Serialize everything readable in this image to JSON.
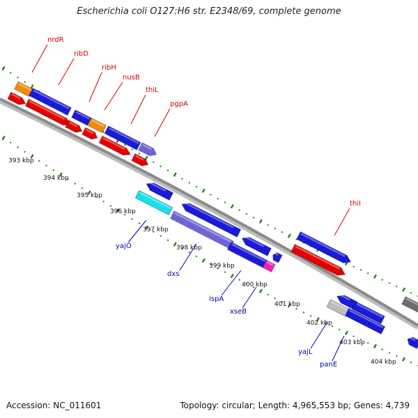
{
  "title": "Escherichia coli O127:H6 str. E2348/69, complete genome",
  "footer": {
    "accession": "Accession: NC_011601",
    "summary": "Topology: circular; Length: 4,965,553 bp; Genes: 4,739"
  },
  "colors": {
    "cds": "#1a1ad9",
    "gene": "#e60000",
    "rna": "#f28a0a",
    "overlap": "#6e64d8",
    "cyan": "#18e0e8",
    "magenta": "#ee22bb",
    "grey": "#bdbdbd",
    "darkgrey": "#6c6c6c",
    "backbone": "#8a8a8a",
    "tick": "#2a7a1e",
    "fwd_label": "#cc0000",
    "rev_label": "#0000aa"
  },
  "ticks": [
    {
      "label": "393 kbp"
    },
    {
      "label": "394 kbp"
    },
    {
      "label": "395 kbp"
    },
    {
      "label": "396 kbp"
    },
    {
      "label": "397 kbp"
    },
    {
      "label": "398 kbp"
    },
    {
      "label": "399 kbp"
    },
    {
      "label": "400 kbp"
    },
    {
      "label": "401 kbp"
    },
    {
      "label": "402 kbp"
    },
    {
      "label": "403 kbp"
    },
    {
      "label": "404 kbp"
    }
  ],
  "forward_labels": [
    "nrdR",
    "ribD",
    "ribH",
    "nusB",
    "thiL",
    "pgpA",
    "thiI"
  ],
  "reverse_labels": [
    "yajO",
    "dxs",
    "ispA",
    "xseB",
    "yajL",
    "panE"
  ]
}
